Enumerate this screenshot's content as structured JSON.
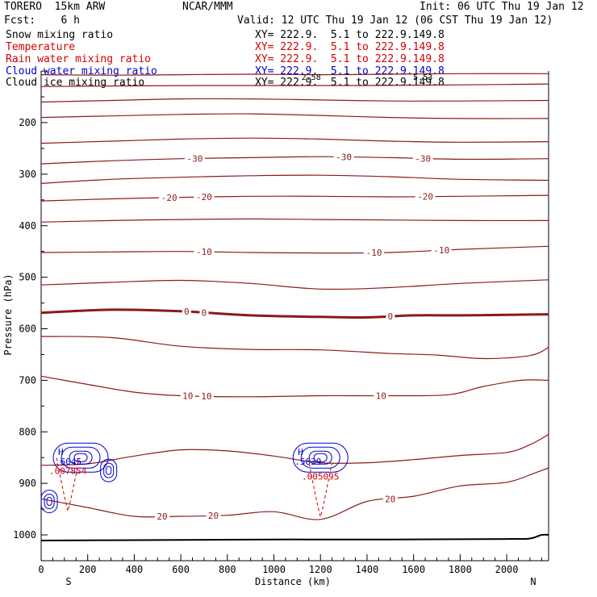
{
  "header": {
    "model": "TORERO  15km ARW",
    "org": "NCAR/MMM",
    "init": "Init: 06 UTC Thu 19 Jan 12",
    "fcst": "Fcst:    6 h",
    "valid": "Valid: 12 UTC Thu 19 Jan 12 (06 CST Thu 19 Jan 12)"
  },
  "fields": [
    {
      "name": "Snow mixing ratio",
      "xy": "XY= 222.9.  5.1 to 222.9.149.8",
      "color": "#000000"
    },
    {
      "name": "Temperature",
      "xy": "XY= 222.9.  5.1 to 222.9.149.8",
      "color": "#d40000"
    },
    {
      "name": "Rain water mixing ratio",
      "xy": "XY= 222.9.  5.1 to 222.9.149.8",
      "color": "#d40000"
    },
    {
      "name": "Cloud water mixing ratio",
      "xy": "XY= 222.9.  5.1 to 222.9.149.8",
      "color": "#0000cc"
    },
    {
      "name": "Cloud ice mixing ratio",
      "xy": "XY= 222.9.  5.1 to 222.9.149.8",
      "color": "#000000"
    }
  ],
  "chart_data": {
    "type": "contour-cross-section",
    "xlabel": "Distance (km)",
    "ylabel": "Pressure (hPa)",
    "xlim": [
      0,
      2180
    ],
    "ylim": [
      1050,
      100
    ],
    "x_ticks": [
      0,
      200,
      400,
      600,
      800,
      1000,
      1200,
      1400,
      1600,
      1800,
      2000
    ],
    "y_ticks": [
      200,
      300,
      400,
      500,
      600,
      700,
      800,
      900,
      1000
    ],
    "endpoint_labels": {
      "left": "S",
      "right": "N"
    },
    "temperature_contours": {
      "color": "#8b1a1a",
      "interval": 5,
      "lines": [
        {
          "level": null,
          "pts": [
            [
              0,
              107
            ],
            [
              300,
              108
            ],
            [
              600,
              107
            ],
            [
              900,
              106
            ],
            [
              1200,
              107
            ],
            [
              1500,
              106
            ],
            [
              1800,
              105
            ],
            [
              2180,
              105
            ]
          ]
        },
        {
          "level": null,
          "pts": [
            [
              0,
              130
            ],
            [
              300,
              129
            ],
            [
              700,
              128
            ],
            [
              1000,
              128
            ],
            [
              1400,
              128
            ],
            [
              1700,
              127
            ],
            [
              2000,
              126
            ],
            [
              2180,
              125
            ]
          ]
        },
        {
          "level": null,
          "pts": [
            [
              0,
              160
            ],
            [
              300,
              157
            ],
            [
              600,
              154
            ],
            [
              900,
              154
            ],
            [
              1200,
              156
            ],
            [
              1500,
              158
            ],
            [
              1800,
              158
            ],
            [
              2180,
              157
            ]
          ]
        },
        {
          "level": null,
          "pts": [
            [
              0,
              190
            ],
            [
              300,
              187
            ],
            [
              600,
              184
            ],
            [
              900,
              183
            ],
            [
              1200,
              186
            ],
            [
              1500,
              190
            ],
            [
              1800,
              192
            ],
            [
              2180,
              192
            ]
          ]
        },
        {
          "level": null,
          "pts": [
            [
              0,
              240
            ],
            [
              300,
              236
            ],
            [
              600,
              232
            ],
            [
              900,
              230
            ],
            [
              1200,
              232
            ],
            [
              1500,
              236
            ],
            [
              1800,
              238
            ],
            [
              2180,
              237
            ]
          ]
        },
        {
          "level": -30,
          "labels": [
            660,
            1300,
            1640
          ],
          "pts": [
            [
              0,
              280
            ],
            [
              300,
              274
            ],
            [
              600,
              270
            ],
            [
              900,
              268
            ],
            [
              1200,
              266
            ],
            [
              1500,
              268
            ],
            [
              1800,
              271
            ],
            [
              2180,
              270
            ]
          ]
        },
        {
          "level": null,
          "pts": [
            [
              0,
              318
            ],
            [
              300,
              310
            ],
            [
              600,
              306
            ],
            [
              900,
              303
            ],
            [
              1200,
              302
            ],
            [
              1500,
              305
            ],
            [
              1800,
              310
            ],
            [
              2180,
              312
            ]
          ]
        },
        {
          "level": -20,
          "labels": [
            550,
            700,
            1650
          ],
          "pts": [
            [
              0,
              352
            ],
            [
              300,
              348
            ],
            [
              600,
              345
            ],
            [
              900,
              343
            ],
            [
              1200,
              343
            ],
            [
              1500,
              344
            ],
            [
              1800,
              343
            ],
            [
              2180,
              341
            ]
          ]
        },
        {
          "level": null,
          "pts": [
            [
              0,
              393
            ],
            [
              300,
              390
            ],
            [
              600,
              388
            ],
            [
              900,
              387
            ],
            [
              1200,
              388
            ],
            [
              1500,
              389
            ],
            [
              1800,
              390
            ],
            [
              2180,
              390
            ]
          ]
        },
        {
          "level": -10,
          "labels": [
            700,
            1430,
            1720
          ],
          "pts": [
            [
              0,
              452
            ],
            [
              300,
              451
            ],
            [
              600,
              450
            ],
            [
              900,
              452
            ],
            [
              1200,
              453
            ],
            [
              1500,
              452
            ],
            [
              1800,
              446
            ],
            [
              2180,
              440
            ]
          ]
        },
        {
          "level": null,
          "pts": [
            [
              0,
              515
            ],
            [
              300,
              510
            ],
            [
              600,
              506
            ],
            [
              900,
              512
            ],
            [
              1200,
              523
            ],
            [
              1500,
              520
            ],
            [
              1800,
              512
            ],
            [
              2180,
              505
            ]
          ]
        },
        {
          "level": 0,
          "bold": true,
          "labels": [
            625,
            700,
            1500
          ],
          "pts": [
            [
              0,
              569
            ],
            [
              300,
              563
            ],
            [
              600,
              566
            ],
            [
              900,
              574
            ],
            [
              1200,
              577
            ],
            [
              1400,
              578
            ],
            [
              1600,
              574
            ],
            [
              1800,
              574
            ],
            [
              2000,
              573
            ],
            [
              2180,
              572
            ]
          ]
        },
        {
          "level": null,
          "pts": [
            [
              0,
              615
            ],
            [
              300,
              617
            ],
            [
              600,
              634
            ],
            [
              900,
              640
            ],
            [
              1200,
              641
            ],
            [
              1500,
              648
            ],
            [
              1700,
              651
            ],
            [
              1900,
              658
            ],
            [
              2100,
              652
            ],
            [
              2180,
              636
            ]
          ]
        },
        {
          "level": 10,
          "labels": [
            630,
            710,
            1460
          ],
          "pts": [
            [
              0,
              692
            ],
            [
              200,
              708
            ],
            [
              400,
              723
            ],
            [
              600,
              730
            ],
            [
              900,
              732
            ],
            [
              1200,
              730
            ],
            [
              1500,
              730
            ],
            [
              1750,
              728
            ],
            [
              1900,
              712
            ],
            [
              2060,
              700
            ],
            [
              2180,
              700
            ]
          ]
        },
        {
          "level": null,
          "pts": [
            [
              0,
              865
            ],
            [
              200,
              862
            ],
            [
              400,
              847
            ],
            [
              600,
              835
            ],
            [
              800,
              837
            ],
            [
              1000,
              847
            ],
            [
              1200,
              860
            ],
            [
              1400,
              860
            ],
            [
              1600,
              854
            ],
            [
              1800,
              846
            ],
            [
              2000,
              840
            ],
            [
              2100,
              825
            ],
            [
              2180,
              805
            ]
          ]
        },
        {
          "level": 20,
          "labels": [
            520,
            740,
            1500
          ],
          "pts": [
            [
              0,
              930
            ],
            [
              200,
              947
            ],
            [
              400,
              964
            ],
            [
              600,
              964
            ],
            [
              800,
              962
            ],
            [
              1000,
              955
            ],
            [
              1200,
              970
            ],
            [
              1400,
              935
            ],
            [
              1600,
              925
            ],
            [
              1800,
              905
            ],
            [
              2000,
              898
            ],
            [
              2120,
              880
            ],
            [
              2180,
              870
            ]
          ]
        }
      ]
    },
    "surface_line": {
      "color": "#000000",
      "pts": [
        [
          0,
          1011
        ],
        [
          500,
          1010
        ],
        [
          1000,
          1009
        ],
        [
          1500,
          1009
        ],
        [
          2000,
          1008
        ],
        [
          2100,
          1007
        ],
        [
          2150,
          1000
        ],
        [
          2180,
          1000
        ]
      ]
    },
    "cloud_water_contours": {
      "color": "#0000cc",
      "clusters": [
        {
          "center": [
            170,
            850
          ],
          "label": "H",
          "value": ".6045"
        },
        {
          "center": [
            290,
            875
          ],
          "label": "",
          "value": ""
        },
        {
          "center": [
            35,
            935
          ],
          "label": "",
          "value": ""
        },
        {
          "center": [
            1200,
            850
          ],
          "label": "H",
          "value": ".5639"
        }
      ]
    },
    "rain_water_contours": {
      "color": "#d40000",
      "labels": [
        {
          "x": 115,
          "p": 885,
          "value": ".007854"
        },
        {
          "x": 1200,
          "p": 896,
          "value": ".005095"
        }
      ]
    },
    "cloud_ice_marks": {
      "color": "#000000",
      "labels": [
        {
          "x": 1160,
          "p": 105,
          "value": "2.58"
        },
        {
          "x": 1640,
          "p": 105,
          "value": "5.53"
        }
      ]
    }
  }
}
